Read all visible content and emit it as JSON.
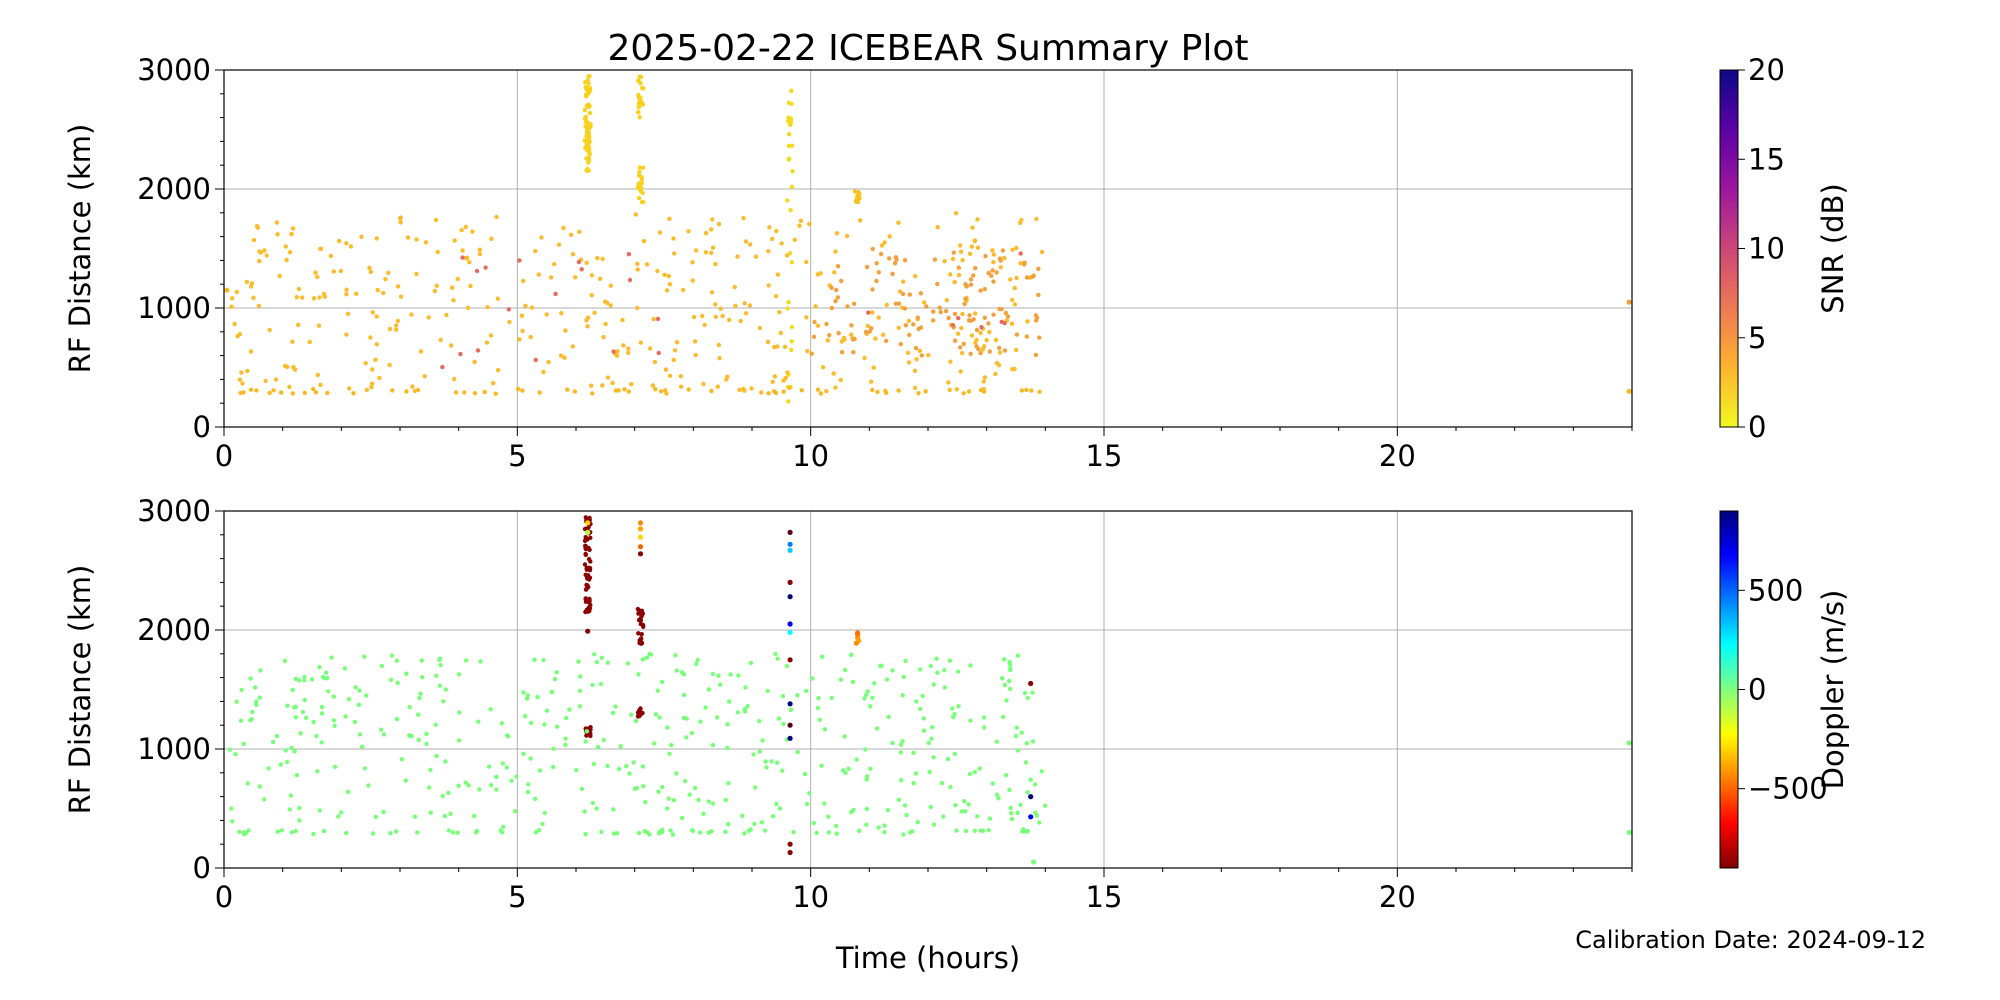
{
  "title": "2025-02-22 ICEBEAR Summary Plot",
  "footer": {
    "calibration": "Calibration Date: 2024-09-12"
  },
  "chart_data": [
    {
      "type": "scatter",
      "id": "snr-panel",
      "xlabel": "",
      "ylabel": "RF Distance (km)",
      "xlim": [
        0,
        24
      ],
      "ylim": [
        0,
        3000
      ],
      "x_ticks": [
        "0",
        "5",
        "10",
        "15",
        "20"
      ],
      "y_ticks": [
        "0",
        "1000",
        "2000",
        "3000"
      ],
      "grid": true,
      "colorbar": {
        "label": "SNR (dB)",
        "colormap": "plasma-reversed",
        "range": [
          0,
          20
        ],
        "ticks": [
          "0",
          "5",
          "10",
          "15",
          "20"
        ],
        "stops": [
          "#f0f921",
          "#fdb42f",
          "#ed7953",
          "#cc4778",
          "#9c179e",
          "#5c01a6",
          "#0d0887"
        ]
      },
      "clusters": [
        {
          "x": [
            6.15,
            6.25
          ],
          "y": [
            2150,
            2950
          ],
          "n": 70,
          "color": "#f7d11c"
        },
        {
          "x": [
            7.05,
            7.15
          ],
          "y": [
            2600,
            2950
          ],
          "n": 20,
          "color": "#f7d11c"
        },
        {
          "x": [
            7.05,
            7.15
          ],
          "y": [
            1880,
            2200
          ],
          "n": 20,
          "color": "#f7d11c"
        },
        {
          "x": [
            9.6,
            9.7
          ],
          "y": [
            100,
            2850
          ],
          "n": 28,
          "color": "#f5da1c"
        },
        {
          "x": [
            10.75,
            10.85
          ],
          "y": [
            1880,
            1980
          ],
          "n": 12,
          "color": "#f5c21c"
        },
        {
          "x": [
            0.1,
            14.0
          ],
          "y": [
            280,
            320
          ],
          "n": 60,
          "color": "#f9b820"
        },
        {
          "x": [
            0.1,
            14.0
          ],
          "y": [
            300,
            1800
          ],
          "n": 420,
          "color": "#fbbb2a"
        },
        {
          "x": [
            10.0,
            13.9
          ],
          "y": [
            600,
            1500
          ],
          "n": 120,
          "color": "#f3a03a"
        },
        {
          "x": [
            2.5,
            13.8
          ],
          "y": [
            500,
            1600
          ],
          "n": 24,
          "color": "#e56b5d"
        }
      ],
      "points": [
        {
          "x": 23.95,
          "y": 1050,
          "color": "#f3a03a"
        },
        {
          "x": 23.95,
          "y": 300,
          "color": "#f9b820"
        },
        {
          "x": 0.05,
          "y": 1150,
          "color": "#f9b820"
        }
      ]
    },
    {
      "type": "scatter",
      "id": "doppler-panel",
      "xlabel": "Time (hours)",
      "ylabel": "RF Distance (km)",
      "xlim": [
        0,
        24
      ],
      "ylim": [
        0,
        3000
      ],
      "x_ticks": [
        "0",
        "5",
        "10",
        "15",
        "20"
      ],
      "y_ticks": [
        "0",
        "1000",
        "2000",
        "3000"
      ],
      "grid": true,
      "colorbar": {
        "label": "Doppler (m/s)",
        "colormap": "jet-reversed",
        "range": [
          -900,
          900
        ],
        "ticks": [
          "−500",
          "0",
          "500"
        ],
        "tick_values": [
          -500,
          0,
          500
        ],
        "stops": [
          "#7f0000",
          "#ff0000",
          "#ff8000",
          "#ffff00",
          "#80ff80",
          "#00ffff",
          "#0080ff",
          "#0000ff",
          "#00007f"
        ]
      },
      "clusters": [
        {
          "x": [
            6.15,
            6.25
          ],
          "y": [
            2150,
            2950
          ],
          "n": 70,
          "color": "#8b0000"
        },
        {
          "x": [
            6.15,
            6.25
          ],
          "y": [
            1100,
            1200
          ],
          "n": 10,
          "color": "#8b0000"
        },
        {
          "x": [
            7.05,
            7.15
          ],
          "y": [
            1880,
            2180
          ],
          "n": 24,
          "color": "#8b0000"
        },
        {
          "x": [
            7.05,
            7.15
          ],
          "y": [
            1260,
            1350
          ],
          "n": 10,
          "color": "#8b0000"
        },
        {
          "x": [
            0.1,
            14.0
          ],
          "y": [
            280,
            320
          ],
          "n": 60,
          "color": "#77ff77"
        },
        {
          "x": [
            0.1,
            14.0
          ],
          "y": [
            300,
            1800
          ],
          "n": 460,
          "color": "#77ff77"
        }
      ],
      "points": [
        {
          "x": 6.2,
          "y": 2900,
          "color": "#ffd400"
        },
        {
          "x": 6.2,
          "y": 2820,
          "color": "#b0ff40"
        },
        {
          "x": 6.2,
          "y": 1990,
          "color": "#8b0000"
        },
        {
          "x": 7.1,
          "y": 2900,
          "color": "#ff8c00"
        },
        {
          "x": 7.1,
          "y": 2850,
          "color": "#ffa500"
        },
        {
          "x": 7.1,
          "y": 2780,
          "color": "#ffd400"
        },
        {
          "x": 7.1,
          "y": 2700,
          "color": "#ff6000"
        },
        {
          "x": 7.1,
          "y": 2640,
          "color": "#8b0000"
        },
        {
          "x": 9.65,
          "y": 2820,
          "color": "#5a0014"
        },
        {
          "x": 9.65,
          "y": 2720,
          "color": "#0080ff"
        },
        {
          "x": 9.65,
          "y": 2670,
          "color": "#00ccff"
        },
        {
          "x": 9.65,
          "y": 2400,
          "color": "#8b0000"
        },
        {
          "x": 9.65,
          "y": 2280,
          "color": "#00007f"
        },
        {
          "x": 9.65,
          "y": 2050,
          "color": "#0000ff"
        },
        {
          "x": 9.65,
          "y": 1980,
          "color": "#00ffff"
        },
        {
          "x": 9.65,
          "y": 1750,
          "color": "#8b0000"
        },
        {
          "x": 9.65,
          "y": 1380,
          "color": "#00007f"
        },
        {
          "x": 9.65,
          "y": 1200,
          "color": "#5a0014"
        },
        {
          "x": 9.65,
          "y": 1090,
          "color": "#00007f"
        },
        {
          "x": 9.65,
          "y": 200,
          "color": "#8b0000"
        },
        {
          "x": 9.65,
          "y": 130,
          "color": "#8b0000"
        },
        {
          "x": 10.8,
          "y": 1960,
          "color": "#ff8c00"
        },
        {
          "x": 10.8,
          "y": 1935,
          "color": "#ff8c00"
        },
        {
          "x": 10.82,
          "y": 1910,
          "color": "#ffa500"
        },
        {
          "x": 10.78,
          "y": 1890,
          "color": "#ff8c00"
        },
        {
          "x": 10.8,
          "y": 1975,
          "color": "#ff7000"
        },
        {
          "x": 13.75,
          "y": 600,
          "color": "#00007f"
        },
        {
          "x": 13.75,
          "y": 430,
          "color": "#0000ff"
        },
        {
          "x": 13.75,
          "y": 1550,
          "color": "#8b0000"
        },
        {
          "x": 23.95,
          "y": 1050,
          "color": "#77ff77"
        },
        {
          "x": 23.95,
          "y": 300,
          "color": "#77ff77"
        },
        {
          "x": 13.8,
          "y": 50,
          "color": "#77ff77"
        }
      ]
    }
  ]
}
